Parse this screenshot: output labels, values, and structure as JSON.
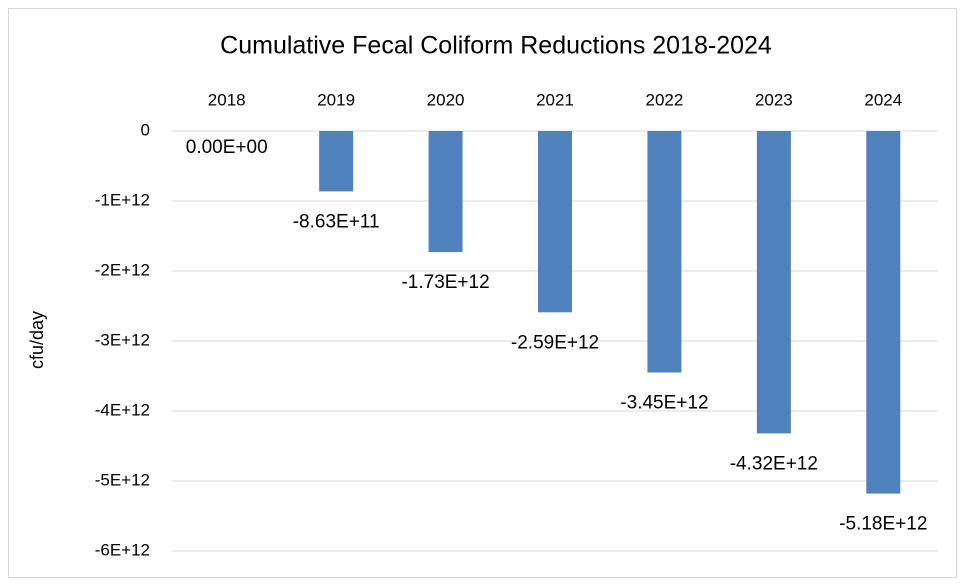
{
  "chart_data": {
    "type": "bar",
    "title": "Cumulative Fecal Coliform Reductions 2018-2024",
    "y_label": "cfu/day",
    "categories": [
      "2018",
      "2019",
      "2020",
      "2021",
      "2022",
      "2023",
      "2024"
    ],
    "values": [
      0,
      -863000000000,
      -1730000000000,
      -2590000000000,
      -3450000000000,
      -4320000000000,
      -5180000000000
    ],
    "value_labels": [
      "0.00E+00",
      "-8.63E+11",
      "-1.73E+12",
      "-2.59E+12",
      "-3.45E+12",
      "-4.32E+12",
      "-5.18E+12"
    ],
    "color": "#4f81bd",
    "ylim": [
      -6000000000000,
      0
    ],
    "yticks": [
      0,
      {
        "value": -1000000000000,
        "label": "-1E+12"
      },
      {
        "value": -2000000000000,
        "label": "-2E+12"
      },
      {
        "value": -3000000000000,
        "label": "-3E+12"
      },
      {
        "value": -4000000000000,
        "label": "-4E+12"
      },
      {
        "value": -5000000000000,
        "label": "-5E+12"
      },
      {
        "value": -6000000000000,
        "label": "-6E+12"
      }
    ],
    "grid": true
  }
}
